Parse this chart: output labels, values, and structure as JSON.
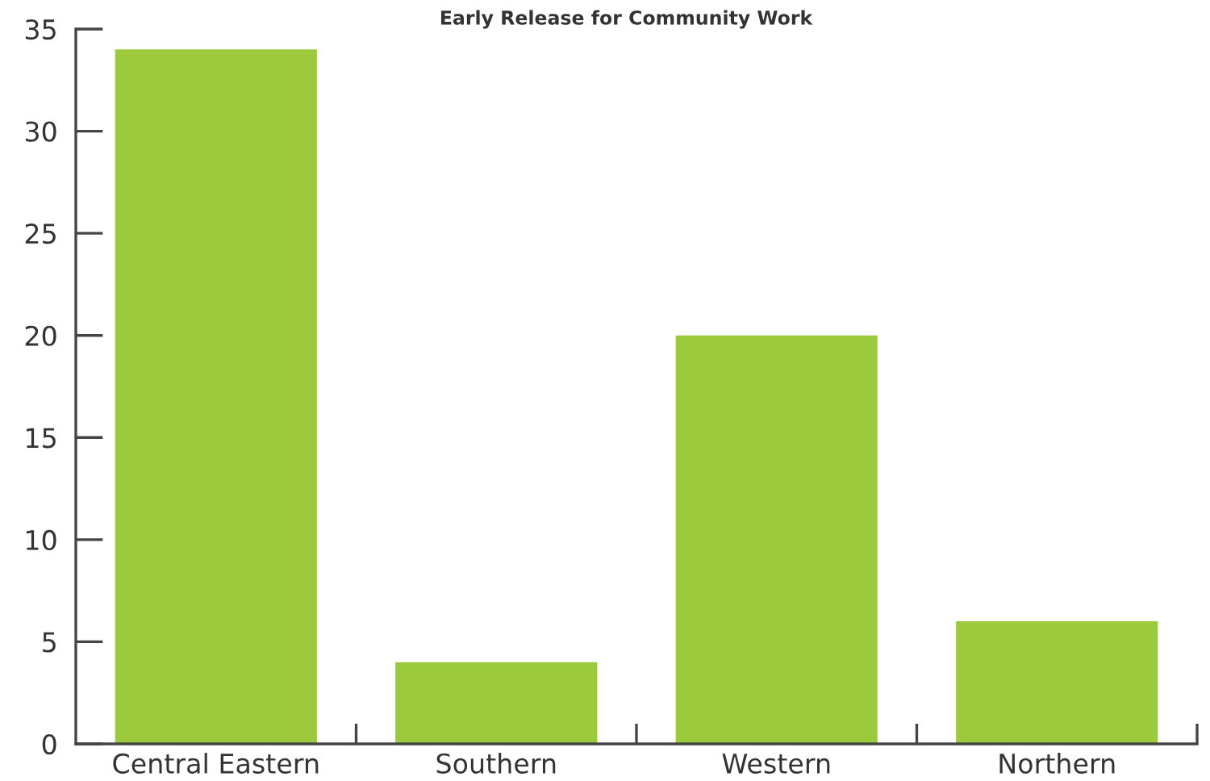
{
  "chart_data": {
    "type": "bar",
    "title": "Early Release for Community Work",
    "categories": [
      "Central Eastern",
      "Southern",
      "Western",
      "Northern"
    ],
    "values": [
      34,
      4,
      20,
      6
    ],
    "color": "#9bca3c",
    "ylim": [
      0,
      35
    ],
    "yticks": [
      0,
      5,
      10,
      15,
      20,
      25,
      30,
      35
    ],
    "grid": false,
    "legend": false
  }
}
